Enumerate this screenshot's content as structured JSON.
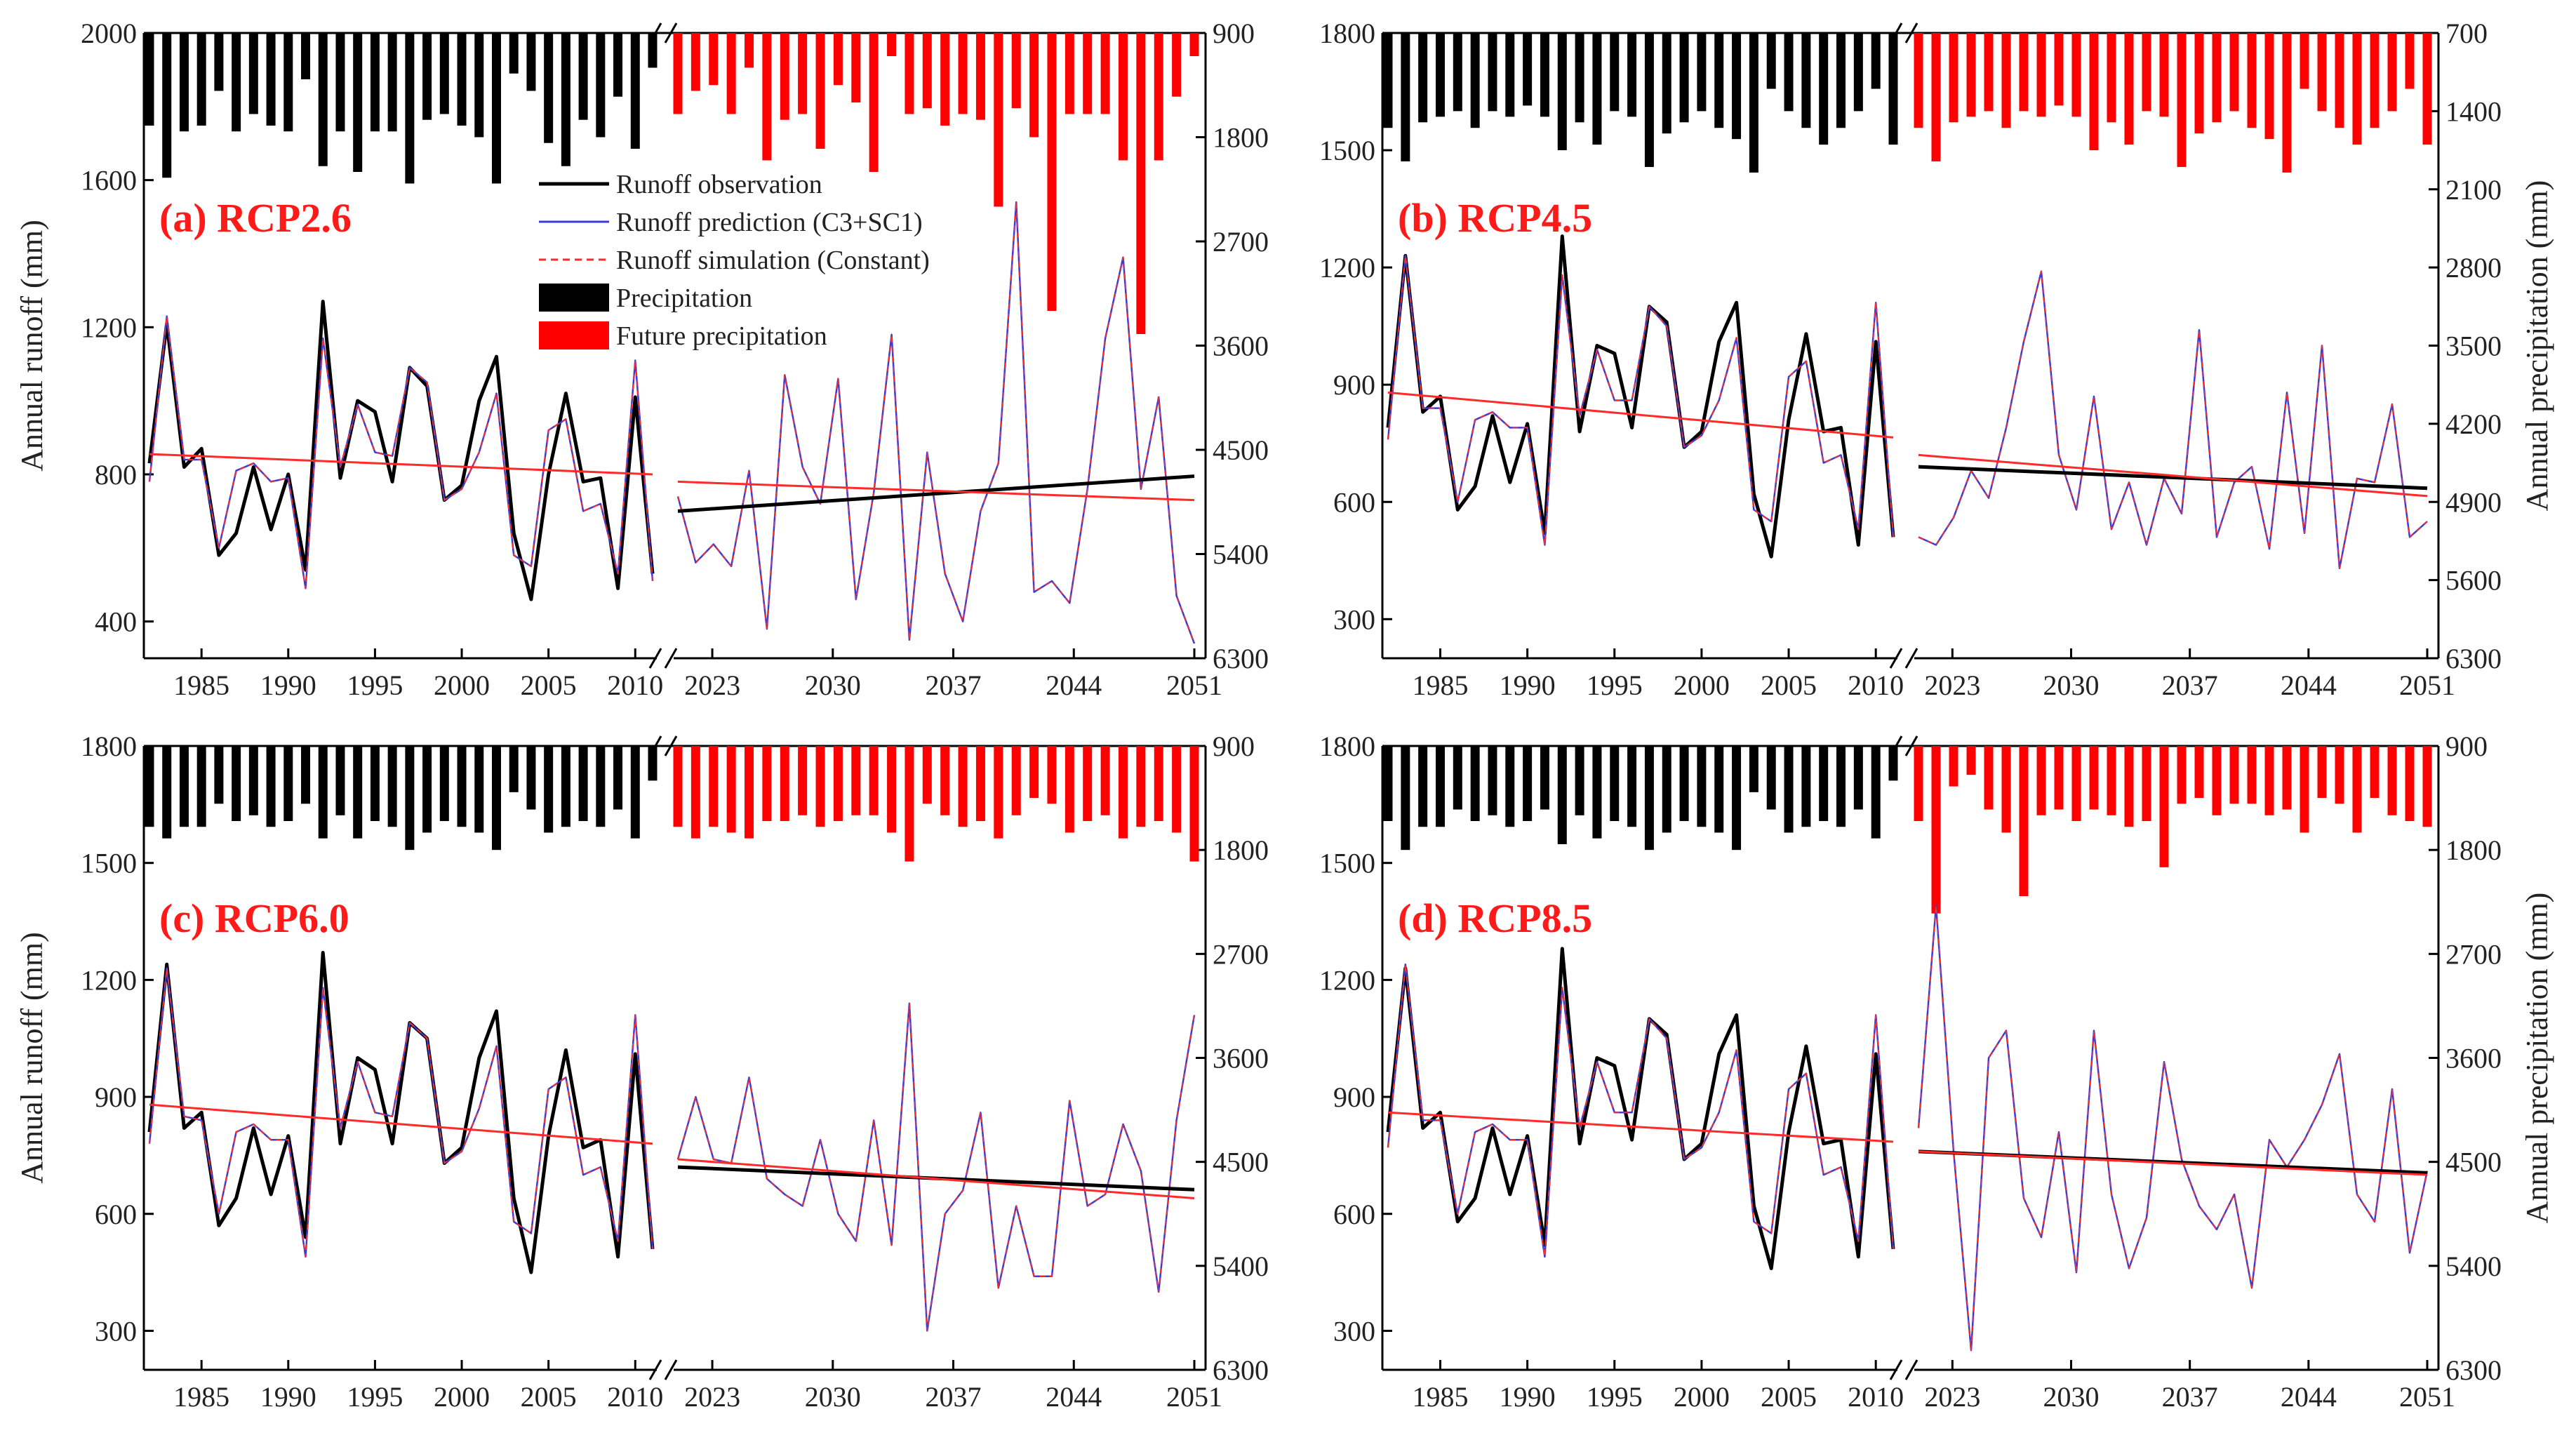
{
  "figure": {
    "ylabel_left": "Annual runoff (mm)",
    "ylabel_right": "Annual precipitation (mm)",
    "legend": [
      {
        "label": "Runoff observation",
        "kind": "line",
        "color": "#000000"
      },
      {
        "label": "Runoff prediction (C3+SC1)",
        "kind": "line",
        "color": "#3b3bd6"
      },
      {
        "label": "Runoff simulation (Constant)",
        "kind": "dashed",
        "color": "#ff2a2a"
      },
      {
        "label": "Precipitation",
        "kind": "box",
        "color": "#000000"
      },
      {
        "label": "Future precipitation",
        "kind": "box",
        "color": "#ff0000"
      }
    ],
    "colors": {
      "observation": "#000000",
      "prediction": "#3b3bd6",
      "simulation": "#ff2a2a",
      "precip_hist": "#000000",
      "precip_future": "#ff0000",
      "panel_label": "#ff1a1a"
    }
  },
  "chart_data": [
    {
      "type": "line",
      "title": "(a) RCP2.6",
      "xlabel": "",
      "ylabel": "Annual runoff (mm)",
      "ylabel_right": "Annual precipitation (mm)",
      "ylim": [
        300,
        2000
      ],
      "yticks": [
        400,
        800,
        1200,
        1600,
        2000
      ],
      "precip_lim": [
        900,
        6300
      ],
      "precip_ticks": [
        900,
        1800,
        2700,
        3600,
        4500,
        5400,
        6300
      ],
      "hist_xticks": [
        1985,
        1990,
        1995,
        2000,
        2005,
        2010
      ],
      "future_xticks": [
        2023,
        2030,
        2037,
        2044,
        2051
      ],
      "hist_years": [
        1982,
        2011
      ],
      "future_years": [
        2021,
        2050
      ],
      "series": [
        {
          "name": "Runoff observation",
          "values": [
            830,
            1210,
            820,
            870,
            580,
            640,
            820,
            650,
            800,
            540,
            1270,
            790,
            1000,
            970,
            780,
            1090,
            1040,
            730,
            770,
            1000,
            1120,
            640,
            460,
            800,
            1020,
            780,
            790,
            490,
            1010,
            530
          ]
        },
        {
          "name": "Runoff prediction (C3+SC1)",
          "values": [
            780,
            1230,
            840,
            840,
            600,
            810,
            830,
            780,
            790,
            490,
            1170,
            820,
            990,
            860,
            850,
            1090,
            1050,
            730,
            760,
            860,
            1020,
            580,
            550,
            920,
            950,
            700,
            720,
            530,
            1110,
            510
          ]
        },
        {
          "name": "Future prediction",
          "values": [
            740,
            560,
            610,
            550,
            810,
            380,
            1070,
            820,
            720,
            1060,
            460,
            750,
            1180,
            350,
            860,
            530,
            400,
            700,
            830,
            1540,
            480,
            510,
            450,
            760,
            1170,
            1390,
            760,
            1010,
            470,
            340
          ]
        },
        {
          "name": "Observation trend",
          "start": 700,
          "end": 795
        },
        {
          "name": "Historical simulation trend",
          "start": 855,
          "end": 800
        },
        {
          "name": "Future simulation trend",
          "start": 780,
          "end": 730
        }
      ],
      "precip_hist": [
        1700,
        2150,
        1750,
        1700,
        1400,
        1750,
        1600,
        1700,
        1750,
        1300,
        2050,
        1750,
        2100,
        1750,
        1750,
        2200,
        1650,
        1600,
        1700,
        1800,
        2200,
        1250,
        1400,
        1850,
        2050,
        1650,
        1800,
        1450,
        1900,
        1200
      ],
      "precip_future": [
        1600,
        1400,
        1350,
        1600,
        1200,
        2000,
        1650,
        1600,
        1900,
        1350,
        1500,
        2100,
        1100,
        1600,
        1550,
        1700,
        1600,
        1650,
        2400,
        1550,
        1800,
        3300,
        1600,
        1600,
        1600,
        2000,
        3500,
        2000,
        1450,
        1100
      ]
    },
    {
      "type": "line",
      "title": "(b) RCP4.5",
      "xlabel": "",
      "ylabel": "Annual runoff (mm)",
      "ylabel_right": "Annual precipitation (mm)",
      "ylim": [
        200,
        1800
      ],
      "yticks": [
        300,
        600,
        900,
        1200,
        1500,
        1800
      ],
      "precip_lim": [
        700,
        6300
      ],
      "precip_ticks": [
        700,
        1400,
        2100,
        2800,
        3500,
        4200,
        4900,
        5600,
        6300
      ],
      "hist_xticks": [
        1985,
        1990,
        1995,
        2000,
        2005,
        2010
      ],
      "future_xticks": [
        2023,
        2030,
        2037,
        2044,
        2051
      ],
      "hist_years": [
        1982,
        2011
      ],
      "future_years": [
        2021,
        2050
      ],
      "series": [
        {
          "name": "Runoff observation",
          "values": [
            790,
            1230,
            830,
            870,
            580,
            640,
            820,
            650,
            800,
            520,
            1280,
            780,
            1000,
            980,
            790,
            1100,
            1060,
            740,
            780,
            1010,
            1110,
            620,
            460,
            810,
            1030,
            780,
            790,
            490,
            1010,
            510
          ]
        },
        {
          "name": "Runoff prediction (C3+SC1)",
          "values": [
            760,
            1230,
            840,
            840,
            600,
            810,
            830,
            790,
            790,
            490,
            1180,
            820,
            990,
            860,
            860,
            1100,
            1050,
            740,
            770,
            860,
            1020,
            580,
            550,
            920,
            960,
            700,
            720,
            530,
            1110,
            510
          ]
        },
        {
          "name": "Future prediction",
          "values": [
            510,
            490,
            560,
            680,
            610,
            790,
            1010,
            1190,
            720,
            580,
            870,
            530,
            650,
            490,
            660,
            570,
            1040,
            510,
            650,
            690,
            480,
            880,
            520,
            1000,
            430,
            660,
            650,
            850,
            510,
            550
          ]
        },
        {
          "name": "Observation trend",
          "start": 690,
          "end": 635
        },
        {
          "name": "Historical simulation trend",
          "start": 880,
          "end": 765
        },
        {
          "name": "Future simulation trend",
          "start": 720,
          "end": 615
        }
      ],
      "precip_hist": [
        1550,
        1850,
        1500,
        1450,
        1400,
        1550,
        1400,
        1450,
        1350,
        1450,
        1750,
        1500,
        1700,
        1400,
        1450,
        1900,
        1600,
        1500,
        1400,
        1550,
        1650,
        1950,
        1200,
        1400,
        1550,
        1700,
        1550,
        1400,
        1200,
        1700
      ]
    },
    {
      "type": "line",
      "title": "(c) RCP6.0",
      "xlabel": "",
      "ylabel": "Annual runoff (mm)",
      "ylabel_right": "Annual precipitation (mm)",
      "ylim": [
        200,
        1800
      ],
      "yticks": [
        300,
        600,
        900,
        1200,
        1500,
        1800
      ],
      "precip_lim": [
        900,
        6300
      ],
      "precip_ticks": [
        900,
        1800,
        2700,
        3600,
        4500,
        5400,
        6300
      ],
      "hist_xticks": [
        1985,
        1990,
        1995,
        2000,
        2005,
        2010
      ],
      "future_xticks": [
        2023,
        2030,
        2037,
        2044,
        2051
      ],
      "hist_years": [
        1982,
        2011
      ],
      "future_years": [
        2021,
        2050
      ],
      "series": [
        {
          "name": "Runoff observation",
          "values": [
            810,
            1240,
            820,
            860,
            570,
            640,
            820,
            650,
            800,
            540,
            1270,
            780,
            1000,
            970,
            780,
            1090,
            1050,
            730,
            770,
            1000,
            1120,
            640,
            450,
            800,
            1020,
            770,
            790,
            490,
            1010,
            510
          ]
        },
        {
          "name": "Runoff prediction (C3+SC1)",
          "values": [
            780,
            1230,
            850,
            840,
            600,
            810,
            830,
            790,
            790,
            490,
            1180,
            820,
            990,
            860,
            850,
            1090,
            1050,
            730,
            760,
            870,
            1030,
            580,
            550,
            920,
            950,
            700,
            720,
            530,
            1110,
            510
          ]
        },
        {
          "name": "Future prediction",
          "values": [
            740,
            900,
            740,
            730,
            950,
            690,
            650,
            620,
            790,
            600,
            530,
            840,
            520,
            1140,
            300,
            600,
            660,
            860,
            410,
            620,
            440,
            440,
            890,
            620,
            650,
            830,
            710,
            400,
            840,
            1110
          ]
        },
        {
          "name": "Observation trend",
          "start": 720,
          "end": 662
        },
        {
          "name": "Historical simulation trend",
          "start": 880,
          "end": 780
        },
        {
          "name": "Future simulation trend",
          "start": 740,
          "end": 640
        }
      ],
      "precip_hist": [
        1600,
        1700,
        1600,
        1600,
        1400,
        1550,
        1500,
        1600,
        1550,
        1400,
        1700,
        1500,
        1700,
        1550,
        1600,
        1800,
        1650,
        1550,
        1600,
        1650,
        1800,
        1300,
        1450,
        1650,
        1600,
        1550,
        1600,
        1450,
        1700,
        1200
      ],
      "precip_future": [
        1600,
        1700,
        1600,
        1650,
        1700,
        1550,
        1550,
        1500,
        1600,
        1550,
        1500,
        1500,
        1650,
        1900,
        1400,
        1500,
        1600,
        1550,
        1700,
        1500,
        1350,
        1400,
        1650,
        1550,
        1500,
        1700,
        1600,
        1550,
        1650,
        1900
      ]
    },
    {
      "type": "line",
      "title": "(d) RCP8.5",
      "xlabel": "",
      "ylabel": "Annual runoff (mm)",
      "ylabel_right": "Annual precipitation (mm)",
      "ylim": [
        200,
        1800
      ],
      "yticks": [
        300,
        600,
        900,
        1200,
        1500,
        1800
      ],
      "precip_lim": [
        900,
        6300
      ],
      "precip_ticks": [
        900,
        1800,
        2700,
        3600,
        4500,
        5400,
        6300
      ],
      "hist_xticks": [
        1985,
        1990,
        1995,
        2000,
        2005,
        2010
      ],
      "future_xticks": [
        2023,
        2030,
        2037,
        2044,
        2051
      ],
      "hist_years": [
        1982,
        2011
      ],
      "future_years": [
        2021,
        2050
      ],
      "series": [
        {
          "name": "Runoff observation",
          "values": [
            810,
            1230,
            820,
            860,
            580,
            640,
            820,
            650,
            800,
            520,
            1280,
            780,
            1000,
            980,
            790,
            1100,
            1060,
            740,
            780,
            1010,
            1110,
            620,
            460,
            810,
            1030,
            780,
            790,
            490,
            1010,
            510
          ]
        },
        {
          "name": "Runoff prediction (C3+SC1)",
          "values": [
            770,
            1240,
            840,
            840,
            600,
            810,
            830,
            790,
            790,
            490,
            1180,
            820,
            990,
            860,
            860,
            1100,
            1050,
            740,
            770,
            860,
            1020,
            580,
            550,
            920,
            960,
            700,
            720,
            530,
            1110,
            510
          ]
        },
        {
          "name": "Future prediction",
          "values": [
            820,
            1390,
            760,
            250,
            1000,
            1070,
            640,
            540,
            810,
            450,
            1070,
            650,
            460,
            590,
            990,
            740,
            620,
            560,
            650,
            410,
            790,
            720,
            790,
            880,
            1010,
            650,
            580,
            920,
            500,
            710
          ]
        },
        {
          "name": "Observation trend",
          "start": 760,
          "end": 705
        },
        {
          "name": "Historical simulation trend",
          "start": 860,
          "end": 785
        },
        {
          "name": "Future simulation trend",
          "start": 760,
          "end": 700
        }
      ],
      "precip_hist": [
        1550,
        1800,
        1600,
        1600,
        1450,
        1550,
        1500,
        1600,
        1550,
        1450,
        1750,
        1500,
        1700,
        1550,
        1600,
        1800,
        1650,
        1550,
        1600,
        1650,
        1800,
        1300,
        1450,
        1650,
        1600,
        1550,
        1600,
        1450,
        1700,
        1200
      ],
      "precip_future": [
        1550,
        2350,
        1250,
        1150,
        1450,
        1650,
        2200,
        1500,
        1450,
        1550,
        1450,
        1500,
        1600,
        1550,
        1950,
        1400,
        1350,
        1500,
        1400,
        1400,
        1500,
        1450,
        1650,
        1350,
        1400,
        1650,
        1350,
        1500,
        1550,
        1600
      ]
    }
  ]
}
